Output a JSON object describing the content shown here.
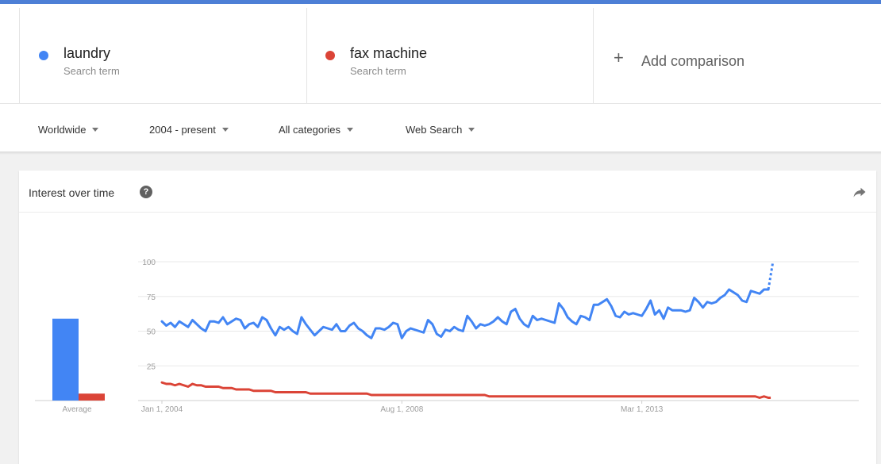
{
  "terms": [
    {
      "name": "laundry",
      "subtitle": "Search term",
      "color": "#4285f4"
    },
    {
      "name": "fax machine",
      "subtitle": "Search term",
      "color": "#db4437"
    }
  ],
  "add_comparison": {
    "icon": "plus-icon",
    "label": "Add comparison"
  },
  "filters": [
    {
      "label": "Worldwide"
    },
    {
      "label": "2004 - present"
    },
    {
      "label": "All categories"
    },
    {
      "label": "Web Search"
    }
  ],
  "panel": {
    "title": "Interest over time",
    "help_icon": "question-mark-icon",
    "share_icon": "share-arrow-icon"
  },
  "chart_data": {
    "type": "line",
    "x_start": "2004-01",
    "x_end": "2017-04",
    "x_tick_labels": [
      "Jan 1, 2004",
      "Aug 1, 2008",
      "Mar 1, 2013"
    ],
    "x_tick_dates": [
      "2004-01",
      "2008-08",
      "2013-03"
    ],
    "y_ticks": [
      25,
      50,
      75,
      100
    ],
    "ylim": [
      0,
      100
    ],
    "grid": true,
    "average_label": "Average",
    "averages": [
      59,
      5
    ],
    "partial_last_point": true,
    "series": [
      {
        "name": "laundry",
        "color": "#4285f4",
        "values": [
          57,
          54,
          56,
          53,
          57,
          55,
          53,
          58,
          55,
          52,
          50,
          57,
          57,
          56,
          60,
          55,
          57,
          59,
          58,
          52,
          55,
          56,
          53,
          60,
          58,
          52,
          47,
          53,
          51,
          53,
          50,
          48,
          60,
          55,
          51,
          47,
          50,
          53,
          52,
          51,
          55,
          50,
          50,
          54,
          56,
          52,
          50,
          47,
          45,
          52,
          52,
          51,
          53,
          56,
          55,
          45,
          50,
          52,
          51,
          50,
          49,
          58,
          55,
          48,
          46,
          51,
          50,
          53,
          51,
          50,
          61,
          57,
          52,
          55,
          54,
          55,
          57,
          60,
          57,
          55,
          64,
          66,
          59,
          55,
          53,
          61,
          58,
          59,
          58,
          57,
          56,
          70,
          66,
          60,
          57,
          55,
          61,
          60,
          58,
          69,
          69,
          71,
          73,
          68,
          61,
          60,
          64,
          62,
          63,
          62,
          61,
          66,
          72,
          62,
          65,
          59,
          67,
          65,
          65,
          65,
          64,
          65,
          74,
          71,
          67,
          71,
          70,
          71,
          74,
          76,
          80,
          78,
          76,
          72,
          71,
          79,
          78,
          77,
          80,
          80,
          99
        ]
      },
      {
        "name": "fax machine",
        "color": "#db4437",
        "values": [
          13,
          12,
          12,
          11,
          12,
          11,
          10,
          12,
          11,
          11,
          10,
          10,
          10,
          10,
          9,
          9,
          9,
          8,
          8,
          8,
          8,
          7,
          7,
          7,
          7,
          7,
          6,
          6,
          6,
          6,
          6,
          6,
          6,
          6,
          5,
          5,
          5,
          5,
          5,
          5,
          5,
          5,
          5,
          5,
          5,
          5,
          5,
          5,
          4,
          4,
          4,
          4,
          4,
          4,
          4,
          4,
          4,
          4,
          4,
          4,
          4,
          4,
          4,
          4,
          4,
          4,
          4,
          4,
          4,
          4,
          4,
          4,
          4,
          4,
          4,
          3,
          3,
          3,
          3,
          3,
          3,
          3,
          3,
          3,
          3,
          3,
          3,
          3,
          3,
          3,
          3,
          3,
          3,
          3,
          3,
          3,
          3,
          3,
          3,
          3,
          3,
          3,
          3,
          3,
          3,
          3,
          3,
          3,
          3,
          3,
          3,
          3,
          3,
          3,
          3,
          3,
          3,
          3,
          3,
          3,
          3,
          3,
          3,
          3,
          3,
          3,
          3,
          3,
          3,
          3,
          3,
          3,
          3,
          3,
          3,
          3,
          3,
          2,
          3,
          2,
          2
        ]
      }
    ]
  }
}
